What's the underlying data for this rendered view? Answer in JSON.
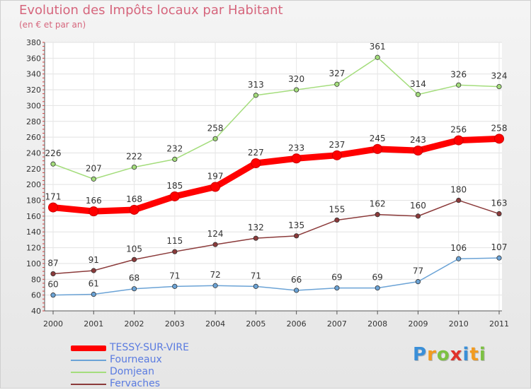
{
  "header": {
    "title": "Evolution des Impôts locaux par Habitant",
    "subtitle": "(en € et par an)"
  },
  "chart_data": {
    "type": "line",
    "x": [
      "2000",
      "2001",
      "2002",
      "2003",
      "2004",
      "2005",
      "2006",
      "2007",
      "2008",
      "2009",
      "2010",
      "2011"
    ],
    "ylim": [
      40,
      380
    ],
    "yticks": [
      40,
      60,
      80,
      100,
      120,
      140,
      160,
      180,
      200,
      220,
      240,
      260,
      280,
      300,
      320,
      340,
      360,
      380
    ],
    "grid": true,
    "legend_position": "bottom-left",
    "series": [
      {
        "name": "TESSY-SUR-VIRE",
        "color": "#ff0000",
        "values": [
          171,
          166,
          168,
          185,
          197,
          227,
          233,
          237,
          245,
          243,
          256,
          258
        ]
      },
      {
        "name": "Fourneaux",
        "color": "#6ba3d6",
        "values": [
          60,
          61,
          68,
          71,
          72,
          71,
          66,
          69,
          69,
          77,
          106,
          107
        ]
      },
      {
        "name": "Domjean",
        "color": "#a4dd7c",
        "values": [
          226,
          207,
          222,
          232,
          258,
          313,
          320,
          327,
          361,
          314,
          326,
          324
        ]
      },
      {
        "name": "Fervaches",
        "color": "#8b3a3a",
        "values": [
          87,
          91,
          105,
          115,
          124,
          132,
          135,
          155,
          162,
          160,
          180,
          163
        ]
      }
    ]
  },
  "logo": {
    "letters": [
      "P",
      "r",
      "o",
      "x",
      "i",
      "t",
      "i"
    ],
    "colors": [
      "#3a8fd8",
      "#f29b20",
      "#7cc142",
      "#e0322b",
      "#3a8fd8",
      "#f29b20",
      "#7cc142"
    ]
  }
}
